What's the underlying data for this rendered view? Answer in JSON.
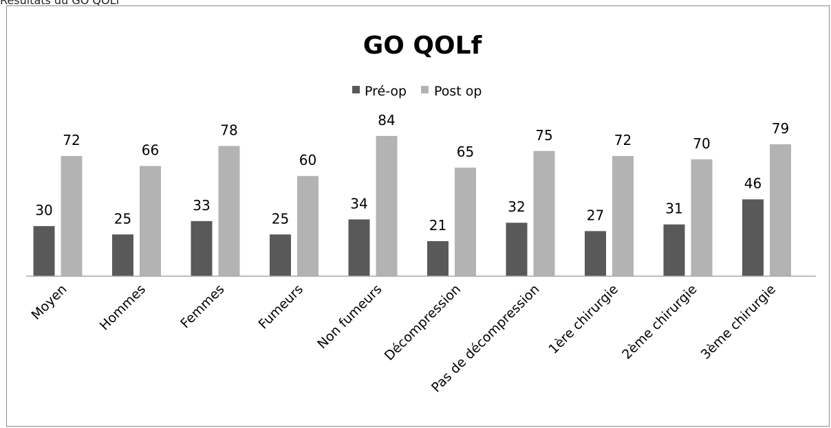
{
  "caption": "Résultats du GO QOLf",
  "chart_data": {
    "type": "bar",
    "title": "GO QOLf",
    "xlabel": "",
    "ylabel": "",
    "ylim": [
      0,
      84
    ],
    "grid": false,
    "legend_position": "top",
    "categories": [
      "Moyen",
      "Hommes",
      "Femmes",
      "Fumeurs",
      "Non fumeurs",
      "Décompression",
      "Pas de décompression",
      "1ère chirurgie",
      "2ème  chirurgie",
      "3ème  chirurgie"
    ],
    "series": [
      {
        "name": "Pré-op",
        "color": "#595959",
        "values": [
          30,
          25,
          33,
          25,
          34,
          21,
          32,
          27,
          31,
          46
        ]
      },
      {
        "name": "Post op",
        "color": "#b3b3b3",
        "values": [
          72,
          66,
          78,
          60,
          84,
          65,
          75,
          72,
          70,
          79
        ]
      }
    ]
  }
}
